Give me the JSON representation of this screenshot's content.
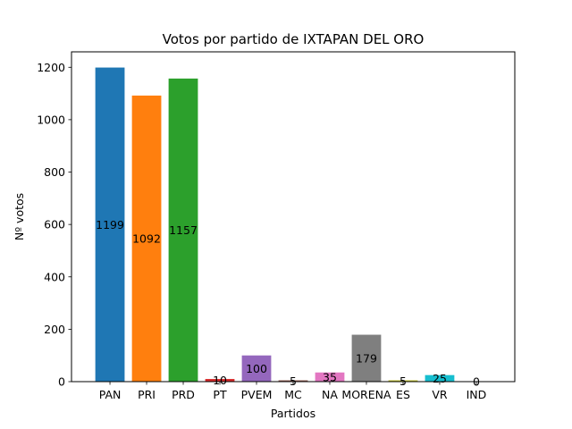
{
  "chart_data": {
    "type": "bar",
    "title": "Votos por partido de IXTAPAN DEL ORO",
    "xlabel": "Partidos",
    "ylabel": "Nº votos",
    "categories": [
      "PAN",
      "PRI",
      "PRD",
      "PT",
      "PVEM",
      "MC",
      "NA",
      "MORENA",
      "ES",
      "VR",
      "IND"
    ],
    "values": [
      1199,
      1092,
      1157,
      10,
      100,
      5,
      35,
      179,
      5,
      25,
      0
    ],
    "data_labels": [
      "1199",
      "1092",
      "1157",
      "10",
      "100",
      "5",
      "35",
      "179",
      "5",
      "25",
      "0"
    ],
    "colors": [
      "#1f77b4",
      "#ff7f0e",
      "#2ca02c",
      "#d62728",
      "#9467bd",
      "#8c564b",
      "#e377c2",
      "#7f7f7f",
      "#bcbd22",
      "#17becf",
      "#1f77b4"
    ],
    "ylim": [
      0,
      1258.95
    ],
    "yticks": [
      0,
      200,
      400,
      600,
      800,
      1000,
      1200
    ],
    "ytick_labels": [
      "0",
      "200",
      "400",
      "600",
      "800",
      "1000",
      "1200"
    ],
    "grid": false,
    "legend": "none"
  }
}
